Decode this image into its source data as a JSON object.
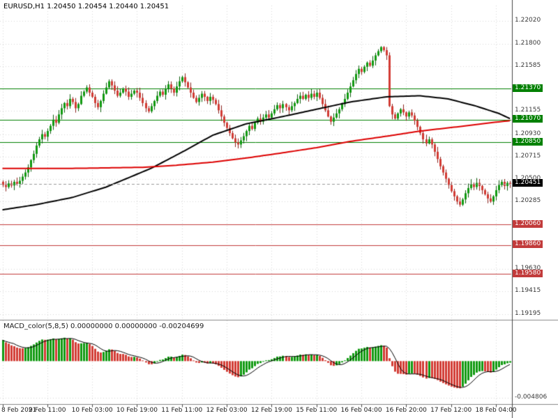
{
  "header": {
    "symbol_line": "EURUSD,H1  1.20450 1.20454 1.20440 1.20451"
  },
  "macd_panel": {
    "label": "MACD_color(5,8,5) 0.00000000 0.00000000 -0.00204699",
    "axis_label": "-0.004806"
  },
  "colors": {
    "background": "#ffffff",
    "candle_up": "#119a11",
    "candle_up_wick": "#0a5d0a",
    "candle_down": "#d23b34",
    "candle_down_wick": "#8a221d",
    "ma_black": "#000000",
    "ma_red": "#dd0000",
    "level_green": "#008000",
    "level_red": "#c23b3b",
    "current_price_bg": "#000000",
    "grid": "#d8d8d8",
    "axis_text": "#3a3a3a",
    "date_text": "#1a1a1a",
    "separator": "#888888",
    "axis_line": "#444444",
    "macd_up": "#119a11",
    "macd_down": "#d23b34",
    "macd_signal": "#000000"
  },
  "chart_data": {
    "type": "candlestick",
    "title": "EURUSD,H1",
    "symbol": "EURUSD",
    "timeframe": "H1",
    "ohlc_display": {
      "open": "1.20450",
      "high": "1.20454",
      "low": "1.20440",
      "close": "1.20451"
    },
    "x_axis": {
      "labels": [
        "8 Feb 2021",
        "9 Feb 11:00",
        "10 Feb 03:00",
        "10 Feb 19:00",
        "11 Feb 11:00",
        "12 Feb 03:00",
        "12 Feb 19:00",
        "15 Feb 11:00",
        "16 Feb 04:00",
        "16 Feb 20:00",
        "17 Feb 12:00",
        "18 Feb 04:00"
      ],
      "label_bar_indices": [
        0,
        16,
        32,
        48,
        64,
        80,
        96,
        112,
        128,
        144,
        160,
        176
      ]
    },
    "y_axis": {
      "min": 1.1916,
      "max": 1.2217,
      "grid_labels": [
        "1.22020",
        "1.21800",
        "1.21585",
        "1.21155",
        "1.20930",
        "1.20715",
        "1.20500",
        "1.20285",
        "1.19630",
        "1.19415",
        "1.19195"
      ]
    },
    "levels": {
      "green": [
        1.2137,
        1.2107,
        1.2085
      ],
      "red": [
        1.2006,
        1.1986,
        1.1958
      ]
    },
    "current_price": 1.20451,
    "closes": [
      1.2044,
      1.2042,
      1.20455,
      1.20435,
      1.2047,
      1.2045,
      1.2048,
      1.2052,
      1.2056,
      1.2061,
      1.2068,
      1.2074,
      1.2082,
      1.2088,
      1.2093,
      1.20905,
      1.2096,
      1.2101,
      1.2107,
      1.2104,
      1.2112,
      1.2118,
      1.2123,
      1.212,
      1.2127,
      1.2124,
      1.2118,
      1.2122,
      1.213,
      1.2134,
      1.2138,
      1.2133,
      1.2129,
      1.2123,
      1.2119,
      1.2125,
      1.2132,
      1.2138,
      1.2144,
      1.214,
      1.2135,
      1.213,
      1.2133,
      1.2137,
      1.2134,
      1.2129,
      1.2132,
      1.2135,
      1.2133,
      1.2128,
      1.2123,
      1.2118,
      1.2115,
      1.212,
      1.2125,
      1.213,
      1.2134,
      1.2131,
      1.2137,
      1.2141,
      1.2137,
      1.2133,
      1.2139,
      1.2144,
      1.2148,
      1.2143,
      1.2138,
      1.2133,
      1.2128,
      1.2124,
      1.2128,
      1.2132,
      1.2129,
      1.2125,
      1.2129,
      1.2126,
      1.2122,
      1.2116,
      1.211,
      1.2104,
      1.2099,
      1.2094,
      1.2089,
      1.2085,
      1.2083,
      1.2087,
      1.2091,
      1.2096,
      1.2101,
      1.2098,
      1.2104,
      1.2108,
      1.2105,
      1.2109,
      1.2112,
      1.2109,
      1.2113,
      1.2117,
      1.2121,
      1.2118,
      1.2122,
      1.2119,
      1.2116,
      1.212,
      1.2123,
      1.2127,
      1.213,
      1.2127,
      1.2131,
      1.2128,
      1.2132,
      1.2129,
      1.2133,
      1.2128,
      1.2122,
      1.2116,
      1.211,
      1.2105,
      1.2109,
      1.2113,
      1.2117,
      1.2122,
      1.2127,
      1.2133,
      1.2139,
      1.2145,
      1.2151,
      1.2156,
      1.2153,
      1.2158,
      1.2162,
      1.2159,
      1.2164,
      1.2169,
      1.2173,
      1.2177,
      1.2174,
      1.2169,
      1.212,
      1.2112,
      1.2108,
      1.2113,
      1.2117,
      1.2114,
      1.211,
      1.2114,
      1.2111,
      1.2106,
      1.21,
      1.2094,
      1.2088,
      1.2084,
      1.2088,
      1.2083,
      1.2076,
      1.2069,
      1.2062,
      1.2056,
      1.205,
      1.2044,
      1.2038,
      1.2033,
      1.2028,
      1.2025,
      1.203,
      1.2036,
      1.2041,
      1.2045,
      1.2042,
      1.2046,
      1.2043,
      1.2039,
      1.2035,
      1.2031,
      1.2028,
      1.2033,
      1.2039,
      1.2044,
      1.2047,
      1.2043,
      1.2046,
      1.20451
    ],
    "ma_black": [
      [
        0,
        1.202
      ],
      [
        12,
        1.2025
      ],
      [
        25,
        1.2032
      ],
      [
        37,
        1.2042
      ],
      [
        53,
        1.206
      ],
      [
        65,
        1.2077
      ],
      [
        75,
        1.2092
      ],
      [
        87,
        1.2103
      ],
      [
        100,
        1.211
      ],
      [
        112,
        1.2117
      ],
      [
        124,
        1.2124
      ],
      [
        137,
        1.2129
      ],
      [
        149,
        1.213
      ],
      [
        159,
        1.2127
      ],
      [
        169,
        1.212
      ],
      [
        177,
        1.2113
      ],
      [
        181,
        1.2108
      ]
    ],
    "ma_red": [
      [
        0,
        1.206
      ],
      [
        25,
        1.206
      ],
      [
        50,
        1.2061
      ],
      [
        62,
        1.2063
      ],
      [
        75,
        1.2066
      ],
      [
        87,
        1.207
      ],
      [
        100,
        1.2075
      ],
      [
        112,
        1.208
      ],
      [
        124,
        1.2086
      ],
      [
        137,
        1.2091
      ],
      [
        149,
        1.2096
      ],
      [
        162,
        1.21
      ],
      [
        174,
        1.2104
      ],
      [
        181,
        1.2106
      ]
    ],
    "macd_axis_value": -0.004806,
    "macd_current_value": -0.00204699
  }
}
